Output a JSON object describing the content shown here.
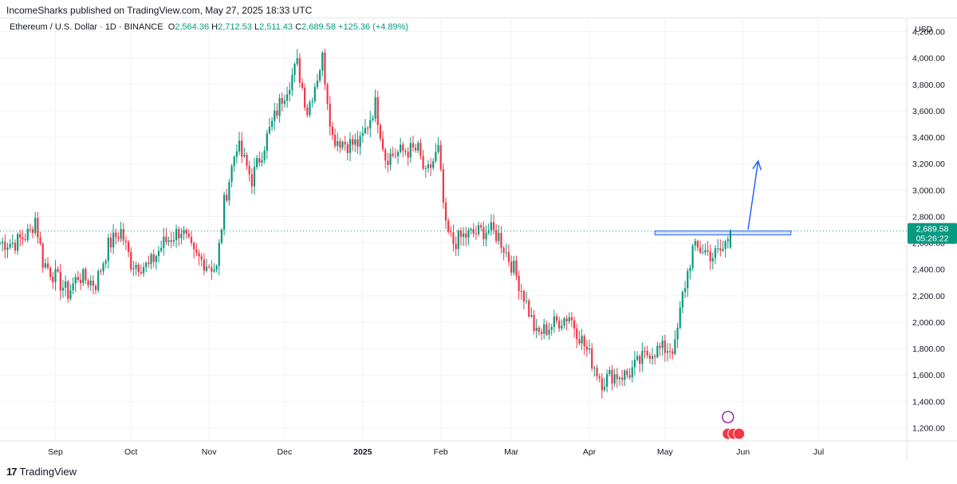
{
  "header": {
    "publish_line": "IncomeSharks published on TradingView.com, May 27, 2025 18:33 UTC"
  },
  "legend": {
    "symbol": "Ethereum / U.S. Dollar · 1D · BINANCE",
    "o_label": "O",
    "o_value": "2,564.36",
    "h_label": "H",
    "h_value": "2,712.53",
    "l_label": "L",
    "l_value": "2,511.43",
    "c_label": "C",
    "c_value": "2,689.58",
    "change": "+125.36 (+4.89%)"
  },
  "price_scale": {
    "currency": "USD",
    "last_price": "2,689.58",
    "countdown": "05:26:22"
  },
  "brand": {
    "name": "TradingView"
  },
  "colors": {
    "up": "#089981",
    "down": "#f23645",
    "grid": "#f0f3fa",
    "price_line": "#089981",
    "arrow": "#2962ff",
    "zone": "#2962ff"
  },
  "chart_data": {
    "type": "candlestick",
    "title": "Ethereum / U.S. Dollar · 1D · BINANCE",
    "ylabel": "USD",
    "ylim": [
      1100,
      4300
    ],
    "y_ticks": [
      "4,200.00",
      "4,000.00",
      "3,800.00",
      "3,600.00",
      "3,400.00",
      "3,200.00",
      "3,000.00",
      "2,800.00",
      "2,600.00",
      "2,400.00",
      "2,200.00",
      "2,000.00",
      "1,800.00",
      "1,600.00",
      "1,400.00",
      "1,200.00"
    ],
    "x_ticks": [
      "Sep",
      "Oct",
      "Nov",
      "Dec",
      "2025",
      "Feb",
      "Mar",
      "Apr",
      "May",
      "Jun",
      "Jul"
    ],
    "x_tick_dates": [
      "2024-09-01",
      "2024-10-01",
      "2024-11-01",
      "2024-12-01",
      "2025-01-01",
      "2025-02-01",
      "2025-03-01",
      "2025-04-01",
      "2025-05-01",
      "2025-06-01",
      "2025-07-01"
    ],
    "x_range": [
      "2024-08-10",
      "2025-08-05"
    ],
    "last_price": 2689.58,
    "resistance_zone": {
      "from": "2025-04-27",
      "to": "2025-06-20",
      "low": 2660,
      "high": 2690
    },
    "projection_arrow": {
      "from_date": "2025-06-03",
      "from_price": 2700,
      "to_date": "2025-06-07",
      "to_price": 3220
    },
    "close_path": [
      [
        "2024-08-10",
        2600
      ],
      [
        "2024-08-16",
        2600
      ],
      [
        "2024-08-22",
        2680
      ],
      [
        "2024-08-24",
        2790
      ],
      [
        "2024-08-27",
        2460
      ],
      [
        "2024-09-06",
        2220
      ],
      [
        "2024-09-10",
        2350
      ],
      [
        "2024-09-17",
        2290
      ],
      [
        "2024-09-22",
        2580
      ],
      [
        "2024-09-27",
        2690
      ],
      [
        "2024-10-01",
        2450
      ],
      [
        "2024-10-08",
        2420
      ],
      [
        "2024-10-14",
        2600
      ],
      [
        "2024-10-21",
        2700
      ],
      [
        "2024-10-26",
        2500
      ],
      [
        "2024-11-04",
        2400
      ],
      [
        "2024-11-07",
        2900
      ],
      [
        "2024-11-12",
        3350
      ],
      [
        "2024-11-18",
        3080
      ],
      [
        "2024-11-24",
        3400
      ],
      [
        "2024-11-30",
        3700
      ],
      [
        "2024-12-06",
        3950
      ],
      [
        "2024-12-10",
        3600
      ],
      [
        "2024-12-16",
        4000
      ],
      [
        "2024-12-20",
        3400
      ],
      [
        "2024-12-26",
        3350
      ],
      [
        "2024-12-31",
        3350
      ],
      [
        "2025-01-06",
        3650
      ],
      [
        "2025-01-10",
        3250
      ],
      [
        "2025-01-18",
        3300
      ],
      [
        "2025-01-23",
        3300
      ],
      [
        "2025-01-26",
        3100
      ],
      [
        "2025-01-31",
        3300
      ],
      [
        "2025-02-03",
        2700
      ],
      [
        "2025-02-06",
        2600
      ],
      [
        "2025-02-10",
        2650
      ],
      [
        "2025-02-20",
        2700
      ],
      [
        "2025-02-24",
        2650
      ],
      [
        "2025-03-02",
        2400
      ],
      [
        "2025-03-06",
        2200
      ],
      [
        "2025-03-11",
        1900
      ],
      [
        "2025-03-19",
        2000
      ],
      [
        "2025-03-24",
        2050
      ],
      [
        "2025-03-28",
        1900
      ],
      [
        "2025-04-06",
        1550
      ],
      [
        "2025-04-10",
        1600
      ],
      [
        "2025-04-16",
        1600
      ],
      [
        "2025-04-21",
        1700
      ],
      [
        "2025-04-25",
        1780
      ],
      [
        "2025-05-05",
        1810
      ],
      [
        "2025-05-08",
        2200
      ],
      [
        "2025-05-12",
        2550
      ],
      [
        "2025-05-16",
        2550
      ],
      [
        "2025-05-20",
        2500
      ],
      [
        "2025-05-24",
        2550
      ],
      [
        "2025-05-27",
        2689.58
      ]
    ]
  }
}
